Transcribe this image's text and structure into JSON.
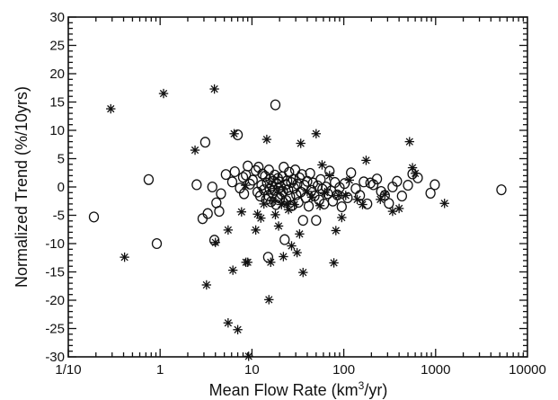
{
  "chart_data": {
    "type": "scatter",
    "title": "",
    "xlabel": "Mean Flow Rate (km",
    "xlabel_sup": "3",
    "xlabel_tail": "/yr)",
    "ylabel": "Normalized Trend (%/10yrs)",
    "x_scale": "log",
    "xlim": [
      0.1,
      10000
    ],
    "ylim": [
      -30,
      30
    ],
    "x_ticks": [
      {
        "value": 0.1,
        "label": "1/10"
      },
      {
        "value": 1,
        "label": "1"
      },
      {
        "value": 10,
        "label": "10"
      },
      {
        "value": 100,
        "label": "100"
      },
      {
        "value": 1000,
        "label": "1000"
      },
      {
        "value": 10000,
        "label": "10000"
      }
    ],
    "y_ticks": [
      -30,
      -25,
      -20,
      -15,
      -10,
      -5,
      0,
      5,
      10,
      15,
      20,
      25,
      30
    ],
    "grid": false,
    "legend": "none",
    "color": "#111111",
    "series": [
      {
        "marker": "circle-open",
        "points": [
          [
            0.19,
            -5.3
          ],
          [
            0.75,
            1.3
          ],
          [
            0.92,
            -10.0
          ],
          [
            2.5,
            0.4
          ],
          [
            2.9,
            -5.6
          ],
          [
            3.1,
            7.9
          ],
          [
            3.3,
            -4.7
          ],
          [
            3.7,
            0.0
          ],
          [
            3.9,
            -9.4
          ],
          [
            4.1,
            -2.8
          ],
          [
            4.4,
            -4.3
          ],
          [
            4.6,
            -1.2
          ],
          [
            5.2,
            2.2
          ],
          [
            6.1,
            0.9
          ],
          [
            6.5,
            2.7
          ],
          [
            7.0,
            9.2
          ],
          [
            7.4,
            -0.2
          ],
          [
            8.0,
            1.7
          ],
          [
            8.2,
            -1.2
          ],
          [
            8.6,
            2.1
          ],
          [
            9.0,
            3.7
          ],
          [
            9.5,
            0.5
          ],
          [
            10.2,
            1.2
          ],
          [
            11.0,
            2.9
          ],
          [
            11.5,
            -0.9
          ],
          [
            11.8,
            3.5
          ],
          [
            12.3,
            -1.6
          ],
          [
            12.7,
            0.3
          ],
          [
            13.0,
            2.3
          ],
          [
            13.5,
            -0.5
          ],
          [
            13.9,
            1.9
          ],
          [
            14.3,
            -2.2
          ],
          [
            14.6,
            0.7
          ],
          [
            15.0,
            -1.5
          ],
          [
            15.0,
            -12.4
          ],
          [
            15.3,
            3.0
          ],
          [
            15.6,
            -0.4
          ],
          [
            15.9,
            1.4
          ],
          [
            16.2,
            -2.6
          ],
          [
            16.5,
            0.2
          ],
          [
            16.8,
            -1.1
          ],
          [
            17.1,
            1.0
          ],
          [
            17.4,
            -0.6
          ],
          [
            17.7,
            2.1
          ],
          [
            18.0,
            14.5
          ],
          [
            18.3,
            -3.1
          ],
          [
            18.6,
            0.6
          ],
          [
            18.9,
            -1.8
          ],
          [
            19.2,
            1.5
          ],
          [
            19.5,
            -0.3
          ],
          [
            19.8,
            0.9
          ],
          [
            20.2,
            -2.0
          ],
          [
            20.6,
            0.0
          ],
          [
            21.0,
            -1.3
          ],
          [
            21.4,
            1.8
          ],
          [
            21.8,
            -0.8
          ],
          [
            22.2,
            3.5
          ],
          [
            22.7,
            -9.3
          ],
          [
            23.2,
            0.4
          ],
          [
            23.7,
            -2.4
          ],
          [
            24.2,
            1.1
          ],
          [
            24.8,
            -0.5
          ],
          [
            25.4,
            2.6
          ],
          [
            26.0,
            -1.7
          ],
          [
            26.7,
            0.8
          ],
          [
            27.4,
            -3.3
          ],
          [
            28.1,
            1.3
          ],
          [
            28.8,
            -0.2
          ],
          [
            29.6,
            3.0
          ],
          [
            30.4,
            -1.4
          ],
          [
            31.2,
            0.5
          ],
          [
            32.1,
            -2.7
          ],
          [
            33.0,
            1.6
          ],
          [
            34.0,
            -0.9
          ],
          [
            35.0,
            2.2
          ],
          [
            36.0,
            -5.9
          ],
          [
            37.2,
            0.3
          ],
          [
            38.5,
            -1.9
          ],
          [
            40.0,
            1.0
          ],
          [
            41.5,
            -3.4
          ],
          [
            43.0,
            2.4
          ],
          [
            44.6,
            -0.6
          ],
          [
            46.3,
            0.7
          ],
          [
            48.0,
            -1.6
          ],
          [
            50.0,
            -5.9
          ],
          [
            52.0,
            0.2
          ],
          [
            54.0,
            -2.3
          ],
          [
            56.0,
            1.3
          ],
          [
            58.5,
            -0.4
          ],
          [
            61.0,
            -3.0
          ],
          [
            64.0,
            0.0
          ],
          [
            67.0,
            -1.2
          ],
          [
            70.0,
            2.8
          ],
          [
            73.0,
            -0.7
          ],
          [
            76.0,
            -2.5
          ],
          [
            80.0,
            0.8
          ],
          [
            85.0,
            -1.4
          ],
          [
            90.0,
            -0.1
          ],
          [
            95.0,
            -3.5
          ],
          [
            102.0,
            0.6
          ],
          [
            110.0,
            -1.9
          ],
          [
            120.0,
            2.5
          ],
          [
            135.0,
            -0.3
          ],
          [
            150.0,
            -1.5
          ],
          [
            165.0,
            0.9
          ],
          [
            180.0,
            -3.0
          ],
          [
            195.0,
            0.7
          ],
          [
            210.0,
            0.4
          ],
          [
            230.0,
            1.4
          ],
          [
            255.0,
            -0.8
          ],
          [
            280.0,
            -1.5
          ],
          [
            310.0,
            -2.9
          ],
          [
            340.0,
            0.0
          ],
          [
            380.0,
            1.0
          ],
          [
            430.0,
            -1.6
          ],
          [
            500.0,
            0.3
          ],
          [
            560.0,
            2.3
          ],
          [
            640.0,
            1.6
          ],
          [
            880.0,
            -1.1
          ],
          [
            980.0,
            0.4
          ],
          [
            5200.0,
            -0.5
          ]
        ]
      },
      {
        "marker": "asterisk",
        "points": [
          [
            0.29,
            13.8
          ],
          [
            0.41,
            -12.4
          ],
          [
            1.09,
            16.5
          ],
          [
            2.4,
            6.5
          ],
          [
            3.2,
            -17.3
          ],
          [
            3.9,
            17.3
          ],
          [
            4.0,
            -9.8
          ],
          [
            5.5,
            -7.6
          ],
          [
            5.5,
            -24.0
          ],
          [
            6.2,
            -14.7
          ],
          [
            6.4,
            9.4
          ],
          [
            7.0,
            -25.2
          ],
          [
            7.7,
            -4.4
          ],
          [
            8.6,
            -13.3
          ],
          [
            9.0,
            -13.3
          ],
          [
            9.2,
            -29.9
          ],
          [
            8.5,
            0.3
          ],
          [
            11.0,
            -7.6
          ],
          [
            11.5,
            -4.8
          ],
          [
            12.5,
            -5.5
          ],
          [
            13.5,
            -3.0
          ],
          [
            14.5,
            8.4
          ],
          [
            15.3,
            -19.9
          ],
          [
            16.0,
            -13.3
          ],
          [
            17.0,
            -2.5
          ],
          [
            18.0,
            -4.9
          ],
          [
            19.5,
            -6.9
          ],
          [
            21.0,
            -3.1
          ],
          [
            22.0,
            -12.3
          ],
          [
            24.0,
            -2.9
          ],
          [
            25.0,
            -4.0
          ],
          [
            27.0,
            -10.4
          ],
          [
            29.0,
            -3.1
          ],
          [
            31.0,
            -11.6
          ],
          [
            33.0,
            -8.3
          ],
          [
            34.0,
            7.7
          ],
          [
            36.0,
            -15.1
          ],
          [
            40.0,
            -0.8
          ],
          [
            45.0,
            -1.8
          ],
          [
            50.0,
            9.4
          ],
          [
            55.0,
            -3.3
          ],
          [
            58.0,
            3.9
          ],
          [
            62.0,
            -1.0
          ],
          [
            70.0,
            2.0
          ],
          [
            78.0,
            -13.4
          ],
          [
            82.0,
            -7.7
          ],
          [
            88.0,
            -1.5
          ],
          [
            95.0,
            -5.4
          ],
          [
            105.0,
            -1.5
          ],
          [
            115.0,
            1.2
          ],
          [
            140.0,
            -2.2
          ],
          [
            160.0,
            -3.1
          ],
          [
            175.0,
            4.7
          ],
          [
            250.0,
            -2.2
          ],
          [
            280.0,
            -1.3
          ],
          [
            340.0,
            -4.3
          ],
          [
            400.0,
            -3.8
          ],
          [
            520.0,
            8.0
          ],
          [
            560.0,
            3.4
          ],
          [
            600.0,
            2.4
          ],
          [
            1250.0,
            -2.9
          ]
        ]
      }
    ]
  }
}
